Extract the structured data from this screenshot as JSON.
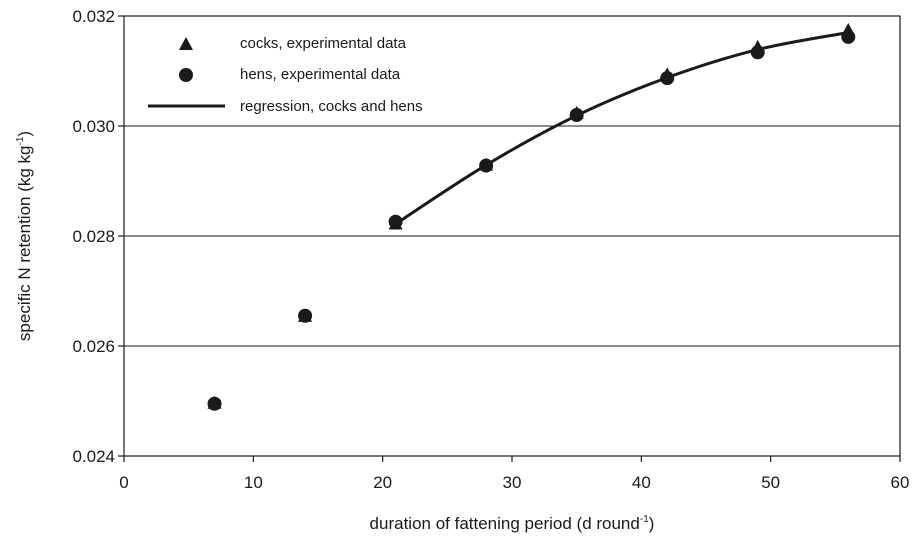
{
  "chart_data": {
    "type": "scatter",
    "xlabel": {
      "main": "duration of fattening period (d round",
      "sup": "-1",
      "close": ")"
    },
    "ylabel": {
      "main": "specific N retention (kg kg",
      "sup": "-1",
      "close": ")"
    },
    "xlim": [
      0,
      60
    ],
    "ylim": [
      0.024,
      0.032
    ],
    "x_ticks": [
      "0",
      "10",
      "20",
      "30",
      "40",
      "50",
      "60"
    ],
    "y_ticks": [
      "0.024",
      "0.026",
      "0.028",
      "0.030",
      "0.032"
    ],
    "grid": "horizontal",
    "legend_position": "top-left",
    "series": [
      {
        "name": "cocks, experimental data",
        "marker": "triangle",
        "color": "#1a1a1a",
        "x": [
          7,
          14,
          21,
          28,
          35,
          42,
          49,
          56
        ],
        "y": [
          0.02495,
          0.02653,
          0.02821,
          0.02928,
          0.03022,
          0.03092,
          0.03142,
          0.03173
        ]
      },
      {
        "name": "hens, experimental data",
        "marker": "circle",
        "color": "#1a1a1a",
        "x": [
          7,
          14,
          21,
          28,
          35,
          42,
          49,
          56
        ],
        "y": [
          0.02495,
          0.02655,
          0.02826,
          0.02928,
          0.0302,
          0.03087,
          0.03134,
          0.03162
        ]
      },
      {
        "name": "regression, cocks and hens",
        "marker": "line",
        "color": "#1a1a1a",
        "x": [
          21,
          28,
          35,
          42,
          49,
          56
        ],
        "y": [
          0.02822,
          0.02929,
          0.03019,
          0.03088,
          0.03139,
          0.0317
        ]
      }
    ]
  }
}
